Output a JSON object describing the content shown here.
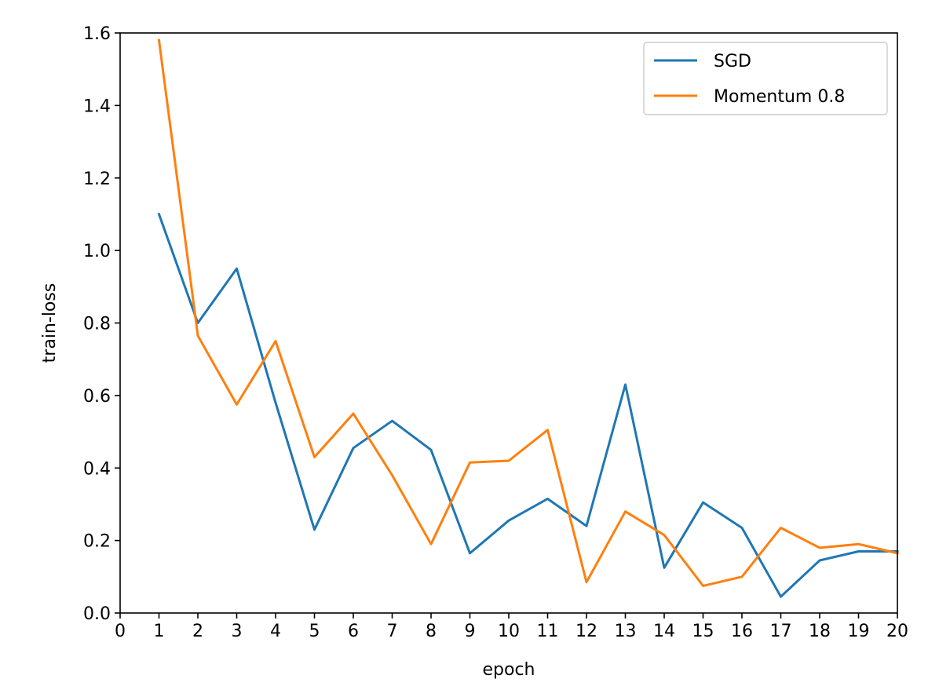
{
  "chart_data": {
    "type": "line",
    "title": "",
    "xlabel": "epoch",
    "ylabel": "train-loss",
    "xlim": [
      0,
      20
    ],
    "ylim": [
      0,
      1.6
    ],
    "xticks": [
      0,
      1,
      2,
      3,
      4,
      5,
      6,
      7,
      8,
      9,
      10,
      11,
      12,
      13,
      14,
      15,
      16,
      17,
      18,
      19,
      20
    ],
    "xtick_labels": [
      "0",
      "1",
      "2",
      "3",
      "4",
      "5",
      "6",
      "7",
      "8",
      "9",
      "10",
      "11",
      "12",
      "13",
      "14",
      "15",
      "16",
      "17",
      "18",
      "19",
      "20"
    ],
    "yticks": [
      0.0,
      0.2,
      0.4,
      0.6,
      0.8,
      1.0,
      1.2,
      1.4,
      1.6
    ],
    "ytick_labels": [
      "0.0",
      "0.2",
      "0.4",
      "0.6",
      "0.8",
      "1.0",
      "1.2",
      "1.4",
      "1.6"
    ],
    "grid": false,
    "legend_position": "top-right",
    "x": [
      1,
      2,
      3,
      4,
      5,
      6,
      7,
      8,
      9,
      10,
      11,
      12,
      13,
      14,
      15,
      16,
      17,
      18,
      19,
      20
    ],
    "series": [
      {
        "name": "SGD",
        "color": "#1f77b4",
        "values": [
          1.1,
          0.8,
          0.95,
          0.58,
          0.23,
          0.455,
          0.53,
          0.45,
          0.165,
          0.255,
          0.315,
          0.24,
          0.63,
          0.125,
          0.305,
          0.235,
          0.045,
          0.145,
          0.17,
          0.17
        ]
      },
      {
        "name": "Momentum 0.8",
        "color": "#ff7f0e",
        "values": [
          1.58,
          0.765,
          0.575,
          0.75,
          0.43,
          0.55,
          0.38,
          0.19,
          0.415,
          0.42,
          0.505,
          0.085,
          0.28,
          0.215,
          0.075,
          0.1,
          0.235,
          0.18,
          0.19,
          0.165
        ]
      }
    ]
  }
}
